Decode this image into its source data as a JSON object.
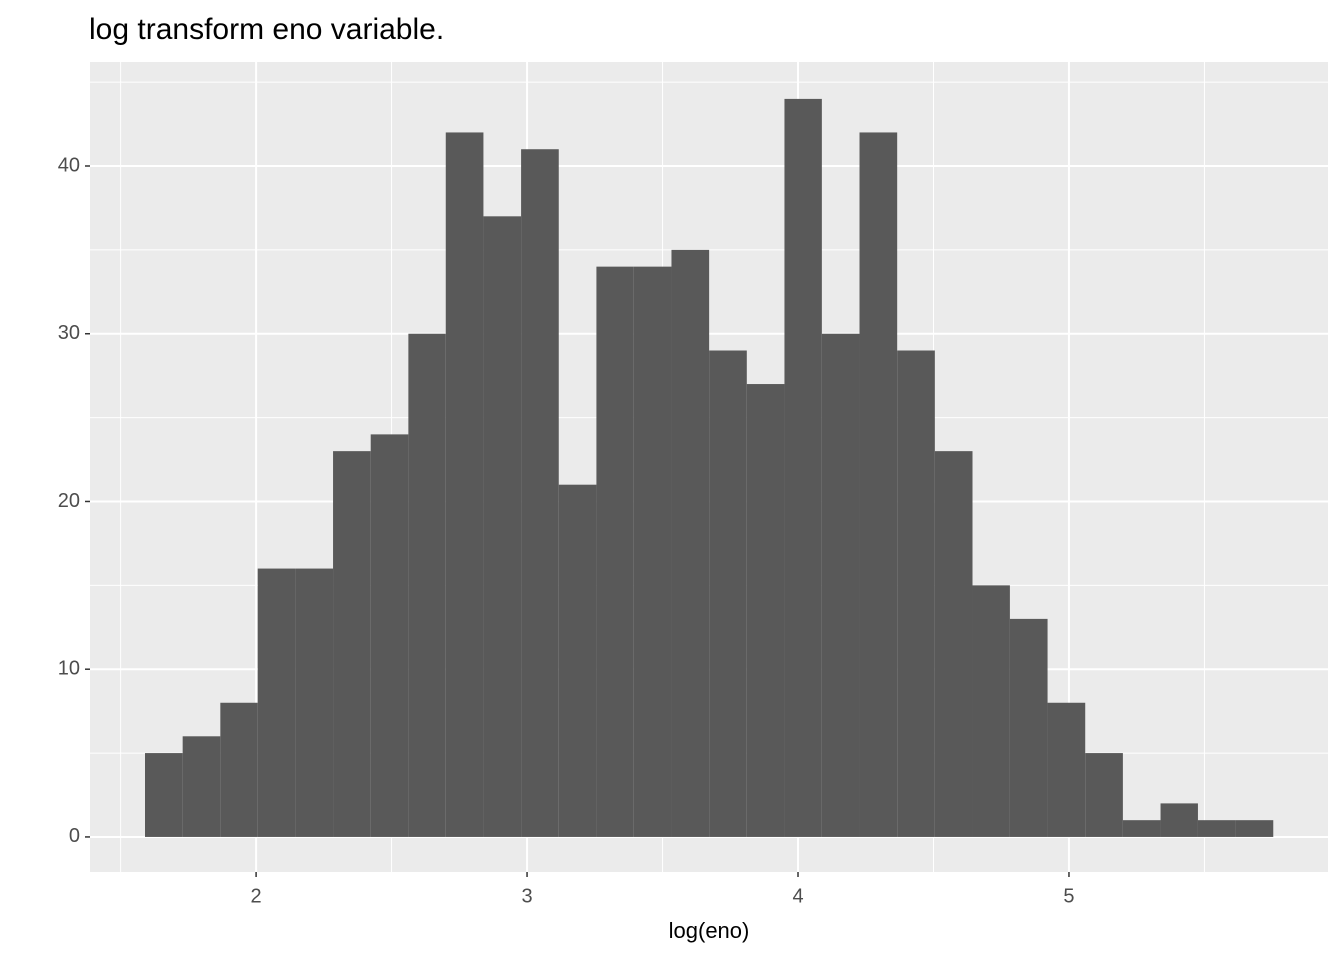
{
  "chart_data": {
    "type": "histogram",
    "title": "log transform eno variable.",
    "xlabel": "log(eno)",
    "bins": [
      1.59,
      1.729,
      1.868,
      2.006,
      2.145,
      2.284,
      2.423,
      2.562,
      2.7,
      2.839,
      2.978,
      3.117,
      3.256,
      3.394,
      3.533,
      3.672,
      3.811,
      3.95,
      4.088,
      4.227,
      4.366,
      4.505,
      4.644,
      4.782,
      4.921,
      5.06,
      5.199,
      5.338,
      5.476,
      5.615,
      5.754
    ],
    "values": [
      5,
      6,
      8,
      16,
      16,
      23,
      24,
      30,
      42,
      37,
      41,
      21,
      34,
      34,
      35,
      29,
      27,
      44,
      30,
      42,
      29,
      23,
      15,
      13,
      8,
      5,
      1,
      2,
      1,
      1
    ],
    "color": "#595959",
    "xlim": [
      1.387,
      5.956
    ],
    "xticks": [
      2,
      3,
      4,
      5
    ],
    "xminor": [
      1.5,
      2.5,
      3.5,
      4.5,
      5.5
    ],
    "ylim": [
      -2.09,
      46.2
    ],
    "yticks": [
      0,
      10,
      20,
      30,
      40
    ],
    "yminor": [
      5,
      15,
      25,
      35,
      45
    ],
    "grid": true
  }
}
